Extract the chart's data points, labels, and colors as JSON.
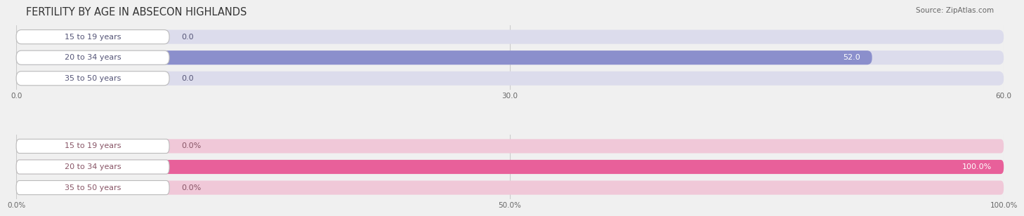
{
  "title": "FERTILITY BY AGE IN ABSECON HIGHLANDS",
  "source": "Source: ZipAtlas.com",
  "top_chart": {
    "categories": [
      "15 to 19 years",
      "20 to 34 years",
      "35 to 50 years"
    ],
    "values": [
      0.0,
      52.0,
      0.0
    ],
    "xlim": [
      0,
      60
    ],
    "xticks": [
      0.0,
      30.0,
      60.0
    ],
    "xtick_labels": [
      "0.0",
      "30.0",
      "60.0"
    ],
    "bar_color": "#8b8fcc",
    "bar_bg_color": "#dcdcec",
    "label_color": "#555577",
    "value_color_inside": "#ffffff",
    "value_color_outside": "#555577"
  },
  "bottom_chart": {
    "categories": [
      "15 to 19 years",
      "20 to 34 years",
      "35 to 50 years"
    ],
    "values": [
      0.0,
      100.0,
      0.0
    ],
    "xlim": [
      0,
      100
    ],
    "xticks": [
      0.0,
      50.0,
      100.0
    ],
    "xtick_labels": [
      "0.0%",
      "50.0%",
      "100.0%"
    ],
    "bar_color": "#e8609a",
    "bar_bg_color": "#f0c8d8",
    "label_color": "#885566",
    "value_color_inside": "#ffffff",
    "value_color_outside": "#885566"
  },
  "fig_bg_color": "#f0f0f0",
  "bar_height": 0.68,
  "label_font_size": 8,
  "value_font_size": 8,
  "title_font_size": 10.5,
  "source_font_size": 7.5
}
